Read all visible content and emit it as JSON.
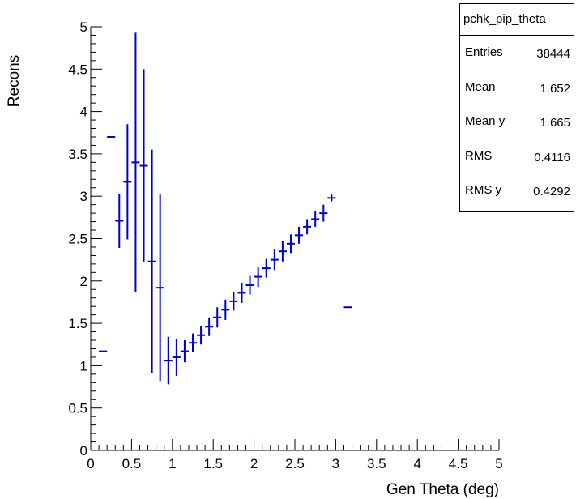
{
  "chart_data": {
    "type": "scatter",
    "title": "",
    "xlabel": "Gen Theta (deg)",
    "ylabel": "Recons",
    "xlim": [
      0,
      5
    ],
    "ylim": [
      0,
      5
    ],
    "xticks": [
      "0",
      "0.5",
      "1",
      "1.5",
      "2",
      "2.5",
      "3",
      "3.5",
      "4",
      "4.5",
      "5"
    ],
    "yticks": [
      "0",
      "0.5",
      "1",
      "1.5",
      "2",
      "2.5",
      "3",
      "3.5",
      "4",
      "4.5",
      "5"
    ],
    "grid": false,
    "marker_color": "#0000cc",
    "bin_halfwidth": 0.05,
    "points": [
      {
        "x": 0.15,
        "y": 1.17,
        "err": 0
      },
      {
        "x": 0.25,
        "y": 3.7,
        "err": 0
      },
      {
        "x": 0.35,
        "y": 2.71,
        "err": 0.32
      },
      {
        "x": 0.45,
        "y": 3.17,
        "err": 0.68
      },
      {
        "x": 0.55,
        "y": 3.4,
        "err": 1.53
      },
      {
        "x": 0.65,
        "y": 3.36,
        "err": 1.14
      },
      {
        "x": 0.75,
        "y": 2.23,
        "err": 1.32
      },
      {
        "x": 0.85,
        "y": 1.92,
        "err": 1.1
      },
      {
        "x": 0.95,
        "y": 1.06,
        "err": 0.28
      },
      {
        "x": 1.05,
        "y": 1.1,
        "err": 0.22
      },
      {
        "x": 1.15,
        "y": 1.17,
        "err": 0.13
      },
      {
        "x": 1.25,
        "y": 1.27,
        "err": 0.11
      },
      {
        "x": 1.35,
        "y": 1.36,
        "err": 0.11
      },
      {
        "x": 1.45,
        "y": 1.46,
        "err": 0.11
      },
      {
        "x": 1.55,
        "y": 1.57,
        "err": 0.12
      },
      {
        "x": 1.65,
        "y": 1.66,
        "err": 0.12
      },
      {
        "x": 1.75,
        "y": 1.76,
        "err": 0.11
      },
      {
        "x": 1.85,
        "y": 1.86,
        "err": 0.12
      },
      {
        "x": 1.95,
        "y": 1.95,
        "err": 0.11
      },
      {
        "x": 2.05,
        "y": 2.05,
        "err": 0.12
      },
      {
        "x": 2.15,
        "y": 2.15,
        "err": 0.11
      },
      {
        "x": 2.25,
        "y": 2.25,
        "err": 0.12
      },
      {
        "x": 2.35,
        "y": 2.35,
        "err": 0.12
      },
      {
        "x": 2.45,
        "y": 2.44,
        "err": 0.11
      },
      {
        "x": 2.55,
        "y": 2.54,
        "err": 0.1
      },
      {
        "x": 2.65,
        "y": 2.64,
        "err": 0.09
      },
      {
        "x": 2.75,
        "y": 2.73,
        "err": 0.09
      },
      {
        "x": 2.85,
        "y": 2.8,
        "err": 0.1
      },
      {
        "x": 2.95,
        "y": 2.98,
        "err": 0.04
      },
      {
        "x": 3.15,
        "y": 1.69,
        "err": 0
      }
    ]
  },
  "stats_box": {
    "title": "pchk_pip_theta",
    "rows": [
      {
        "key": "Entries",
        "value": "38444"
      },
      {
        "key": "Mean",
        "value": "1.652"
      },
      {
        "key": "Mean y",
        "value": "1.665"
      },
      {
        "key": "RMS",
        "value": "0.4116"
      },
      {
        "key": "RMS y",
        "value": "0.4292"
      }
    ]
  }
}
